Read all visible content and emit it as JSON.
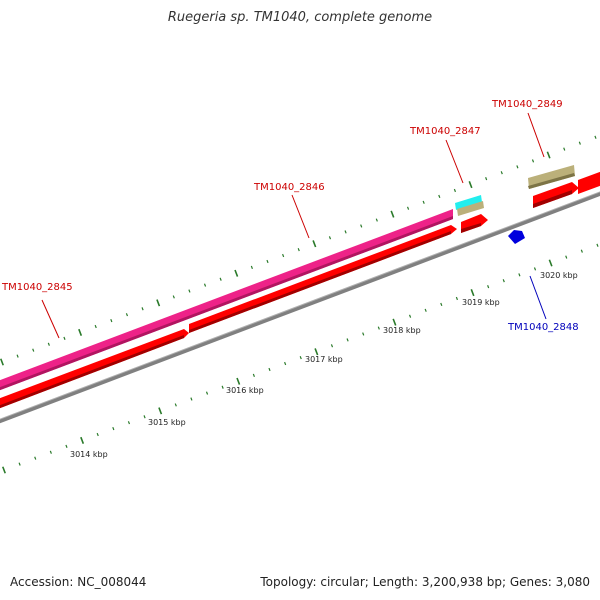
{
  "title": "Ruegeria sp. TM1040, complete genome",
  "footer": {
    "accession": "Accession: NC_008044",
    "summary": "Topology: circular; Length: 3,200,938 bp; Genes: 3,080"
  },
  "colors": {
    "backbone": "#808080",
    "gene_fwd": "#ff0000",
    "gene_rev": "#0000dd",
    "cds_pink": "#ee2288",
    "cyan": "#22eeee",
    "khaki": "#bbb07a",
    "tick": "#2a7a2a",
    "label_fwd": "#cc0000",
    "label_rev": "#0000bb"
  },
  "ticks": [
    "3014 kbp",
    "3015 kbp",
    "3016 kbp",
    "3017 kbp",
    "3018 kbp",
    "3019 kbp",
    "3020 kbp"
  ],
  "gene_labels": [
    {
      "id": "TM1040_2845",
      "strand": "fwd"
    },
    {
      "id": "TM1040_2846",
      "strand": "fwd"
    },
    {
      "id": "TM1040_2847",
      "strand": "fwd"
    },
    {
      "id": "TM1040_2848",
      "strand": "rev"
    },
    {
      "id": "TM1040_2849",
      "strand": "fwd"
    }
  ]
}
